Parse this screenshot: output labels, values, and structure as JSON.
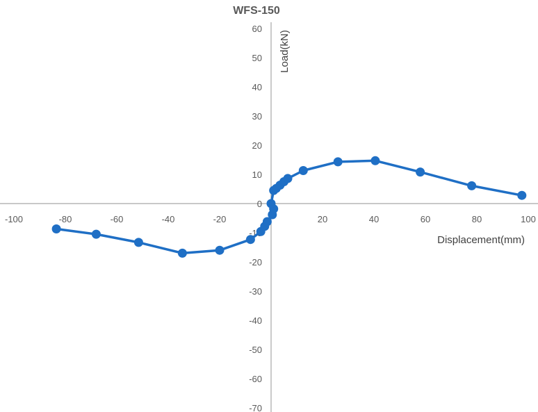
{
  "chart_data": {
    "type": "scatter",
    "title": "WFS-150",
    "xlabel": "Displacement(mm)",
    "ylabel": "Load(kN)",
    "xlim": [
      -100,
      100
    ],
    "ylim": [
      -70,
      60
    ],
    "x_ticks": [
      -100,
      -80,
      -60,
      -40,
      -20,
      20,
      40,
      60,
      80,
      100
    ],
    "y_ticks": [
      60,
      50,
      40,
      30,
      20,
      10,
      0,
      -10,
      -20,
      -30,
      -40,
      -50,
      -60,
      -70
    ],
    "grid": false,
    "legend": "none",
    "line_color": "#1f6fc5",
    "series": [
      {
        "points": [
          [
            -83.5,
            -8.7
          ],
          [
            -68,
            -10.5
          ],
          [
            -51.5,
            -13.3
          ],
          [
            -34.5,
            -17.0
          ],
          [
            -20,
            -16.0
          ],
          [
            -8,
            -12.3
          ],
          [
            -4,
            -9.6
          ],
          [
            -2.5,
            -7.8
          ],
          [
            -1.5,
            -6.2
          ],
          [
            0.5,
            -3.8
          ],
          [
            1,
            -1.8
          ],
          [
            0,
            0
          ],
          [
            1,
            4.5
          ],
          [
            2,
            5.2
          ],
          [
            3.5,
            6.3
          ],
          [
            5,
            7.5
          ],
          [
            6.5,
            8.6
          ],
          [
            12.5,
            11.3
          ],
          [
            26,
            14.3
          ],
          [
            40.5,
            14.7
          ],
          [
            58,
            10.8
          ],
          [
            78,
            6.1
          ],
          [
            97.5,
            2.8
          ]
        ]
      }
    ]
  }
}
